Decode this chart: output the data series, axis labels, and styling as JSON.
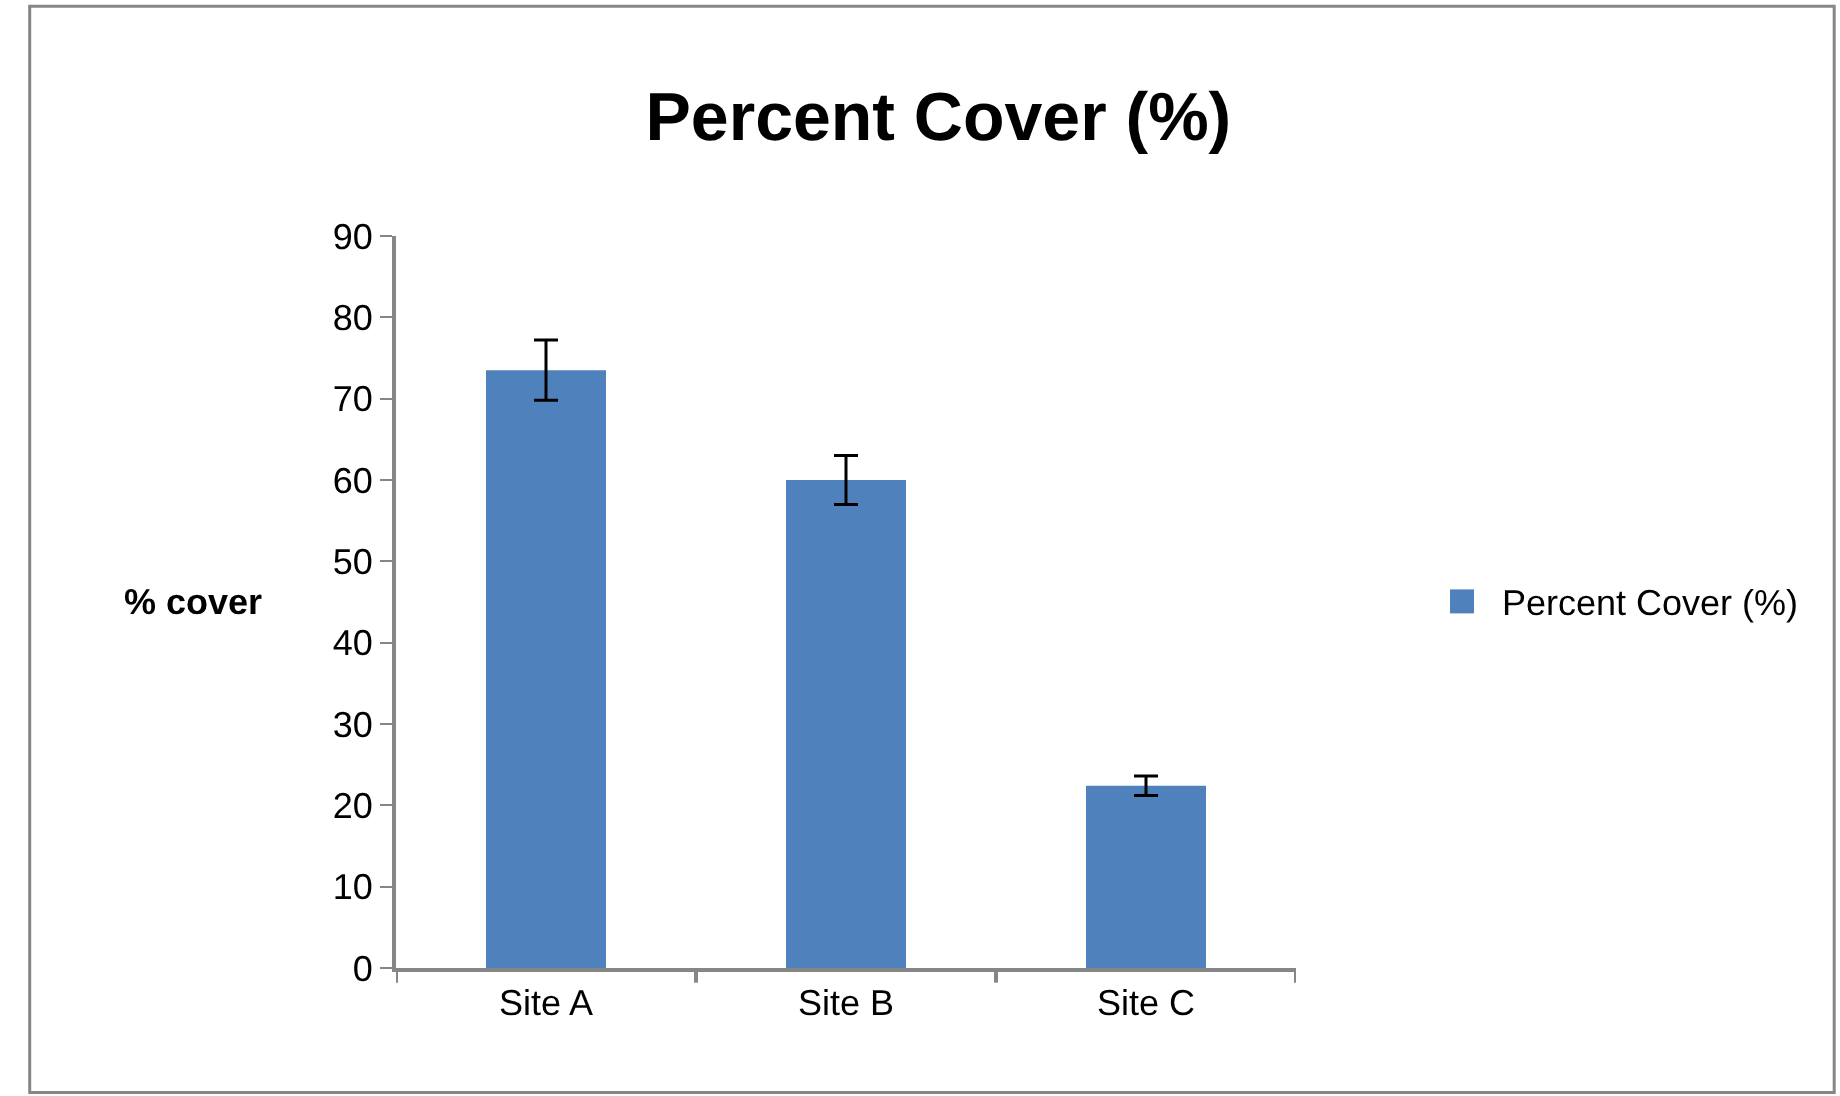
{
  "chart_data": {
    "type": "bar",
    "title": "Percent Cover (%)",
    "ylabel": "% cover",
    "categories": [
      "Site A",
      "Site B",
      "Site C"
    ],
    "series": [
      {
        "name": "Percent Cover (%)",
        "color": "#4f81bd",
        "values": [
          73.5,
          60.0,
          22.4
        ],
        "errors": [
          3.7,
          3.0,
          1.2
        ]
      }
    ],
    "ylim": [
      0,
      90
    ],
    "yticks": [
      0,
      10,
      20,
      30,
      40,
      50,
      60,
      70,
      80,
      90
    ],
    "legend": "right"
  }
}
